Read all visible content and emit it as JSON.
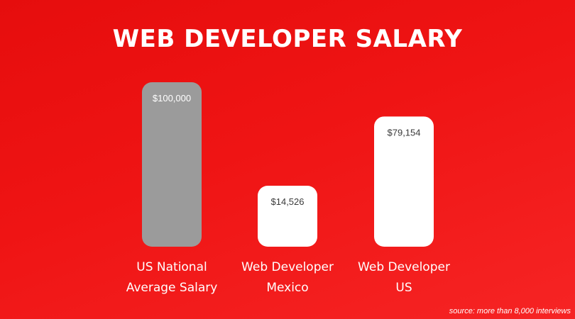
{
  "chart_data": {
    "type": "bar",
    "title": "WEB DEVELOPER SALARY",
    "categories": [
      [
        "US National",
        "Average Salary"
      ],
      [
        "Web Developer",
        "Mexico"
      ],
      [
        "Web Developer",
        "US"
      ]
    ],
    "values": [
      100000,
      14526,
      79154
    ],
    "value_labels": [
      "$100,000",
      "$14,526",
      "$79,154"
    ],
    "colors": [
      "#9b9b9b",
      "#ffffff",
      "#ffffff"
    ],
    "value_label_colors": [
      "#ffffff",
      "#3a3a3a",
      "#3a3a3a"
    ],
    "axes_visible": false,
    "grid": false
  },
  "source": "source: more than 8,000 interviews"
}
